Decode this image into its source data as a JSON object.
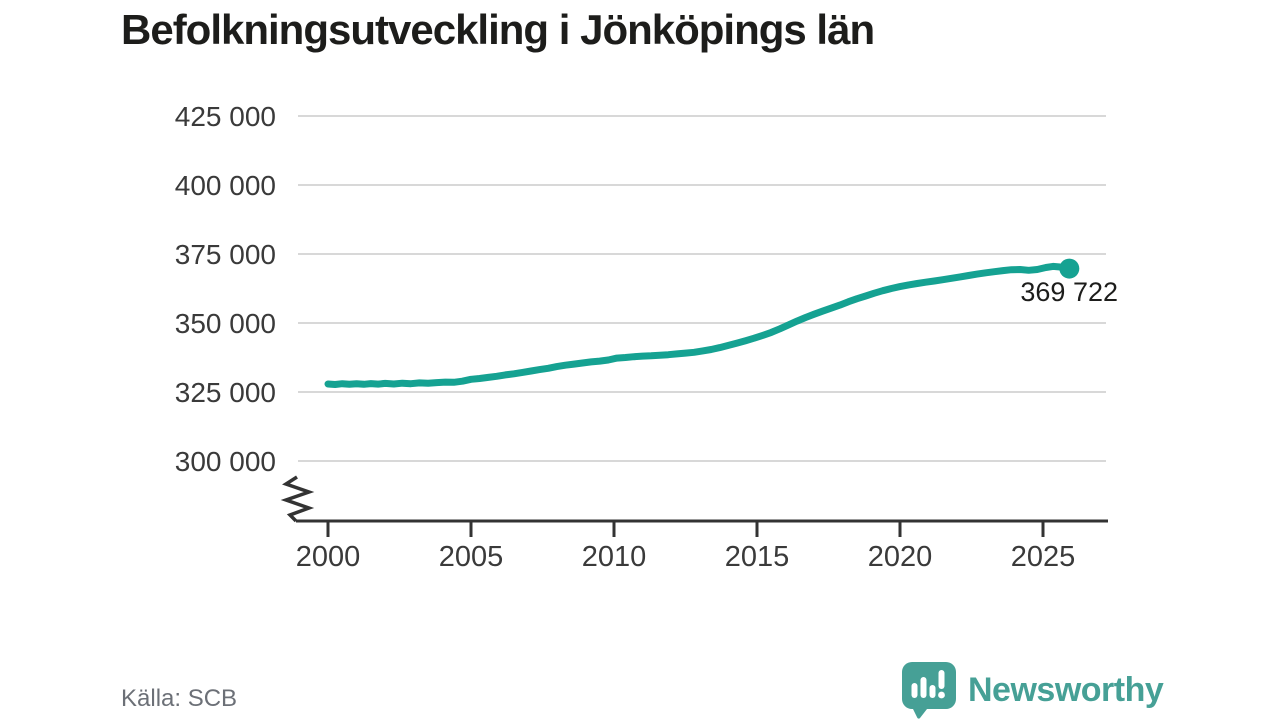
{
  "title": "Befolkningsutveckling i Jönköpings län",
  "source": {
    "label": "Källa: SCB"
  },
  "branding": {
    "wordmark": "Newsworthy",
    "logo_icon": "newsworthy-speech-bubble-bar-chart-icon",
    "color": "#46a096"
  },
  "colors": {
    "line": "#15a292",
    "grid": "#d8d8d8",
    "axis": "#333333",
    "tick_text": "#3a3a3a",
    "title_text": "#1d1d1b",
    "muted_text": "#6c7077"
  },
  "chart_data": {
    "type": "line",
    "title": "Befolkningsutveckling i Jönköpings län",
    "xlabel": "",
    "ylabel": "",
    "grid": "horizontal",
    "legend": "none",
    "axis_break": true,
    "x_ticks": [
      2000,
      2005,
      2010,
      2015,
      2020,
      2025
    ],
    "x_tick_labels": [
      "2000",
      "2005",
      "2010",
      "2015",
      "2020",
      "2025"
    ],
    "y_ticks": [
      425000,
      400000,
      375000,
      350000,
      325000,
      300000
    ],
    "y_tick_labels": [
      "425 000",
      "400 000",
      "375 000",
      "350 000",
      "325 000",
      "300 000"
    ],
    "annotation": {
      "text": "369 722",
      "value": 369722,
      "year": 2025.92
    },
    "series": [
      {
        "points": [
          [
            2000.0,
            327900
          ],
          [
            2000.25,
            327700
          ],
          [
            2000.5,
            328000
          ],
          [
            2000.75,
            327800
          ],
          [
            2001.0,
            328000
          ],
          [
            2001.25,
            327800
          ],
          [
            2001.5,
            328050
          ],
          [
            2001.75,
            327850
          ],
          [
            2002.0,
            328100
          ],
          [
            2002.3,
            327900
          ],
          [
            2002.6,
            328200
          ],
          [
            2002.9,
            328000
          ],
          [
            2003.2,
            328300
          ],
          [
            2003.5,
            328150
          ],
          [
            2003.8,
            328400
          ],
          [
            2004.1,
            328600
          ],
          [
            2004.4,
            328500
          ],
          [
            2004.7,
            328900
          ],
          [
            2005.0,
            329600
          ],
          [
            2005.3,
            329900
          ],
          [
            2005.6,
            330300
          ],
          [
            2005.9,
            330700
          ],
          [
            2006.2,
            331200
          ],
          [
            2006.5,
            331600
          ],
          [
            2006.8,
            332100
          ],
          [
            2007.1,
            332600
          ],
          [
            2007.4,
            333100
          ],
          [
            2007.7,
            333600
          ],
          [
            2008.0,
            334200
          ],
          [
            2008.3,
            334700
          ],
          [
            2008.6,
            335100
          ],
          [
            2008.9,
            335500
          ],
          [
            2009.2,
            335900
          ],
          [
            2009.5,
            336200
          ],
          [
            2009.8,
            336600
          ],
          [
            2010.1,
            337300
          ],
          [
            2010.4,
            337500
          ],
          [
            2010.7,
            337800
          ],
          [
            2011.0,
            338000
          ],
          [
            2011.3,
            338100
          ],
          [
            2011.6,
            338300
          ],
          [
            2011.9,
            338500
          ],
          [
            2012.2,
            338800
          ],
          [
            2012.5,
            339100
          ],
          [
            2012.8,
            339400
          ],
          [
            2013.1,
            339900
          ],
          [
            2013.4,
            340400
          ],
          [
            2013.7,
            341100
          ],
          [
            2014.0,
            341900
          ],
          [
            2014.3,
            342700
          ],
          [
            2014.6,
            343600
          ],
          [
            2014.9,
            344500
          ],
          [
            2015.2,
            345500
          ],
          [
            2015.5,
            346600
          ],
          [
            2015.8,
            347900
          ],
          [
            2016.1,
            349300
          ],
          [
            2016.4,
            350700
          ],
          [
            2016.7,
            352000
          ],
          [
            2017.0,
            353200
          ],
          [
            2017.3,
            354300
          ],
          [
            2017.6,
            355400
          ],
          [
            2017.9,
            356500
          ],
          [
            2018.2,
            357700
          ],
          [
            2018.5,
            358800
          ],
          [
            2018.8,
            359800
          ],
          [
            2019.1,
            360800
          ],
          [
            2019.4,
            361700
          ],
          [
            2019.7,
            362500
          ],
          [
            2020.0,
            363200
          ],
          [
            2020.3,
            363800
          ],
          [
            2020.6,
            364300
          ],
          [
            2020.9,
            364800
          ],
          [
            2021.2,
            365200
          ],
          [
            2021.5,
            365700
          ],
          [
            2021.8,
            366200
          ],
          [
            2022.1,
            366700
          ],
          [
            2022.4,
            367200
          ],
          [
            2022.7,
            367700
          ],
          [
            2023.0,
            368200
          ],
          [
            2023.3,
            368600
          ],
          [
            2023.6,
            369000
          ],
          [
            2023.9,
            369300
          ],
          [
            2024.2,
            369400
          ],
          [
            2024.5,
            369100
          ],
          [
            2024.8,
            369400
          ],
          [
            2025.1,
            370100
          ],
          [
            2025.35,
            370500
          ],
          [
            2025.6,
            370300
          ],
          [
            2025.8,
            369900
          ],
          [
            2025.92,
            369722
          ],
          [
            2026.05,
            369300
          ]
        ]
      }
    ]
  }
}
